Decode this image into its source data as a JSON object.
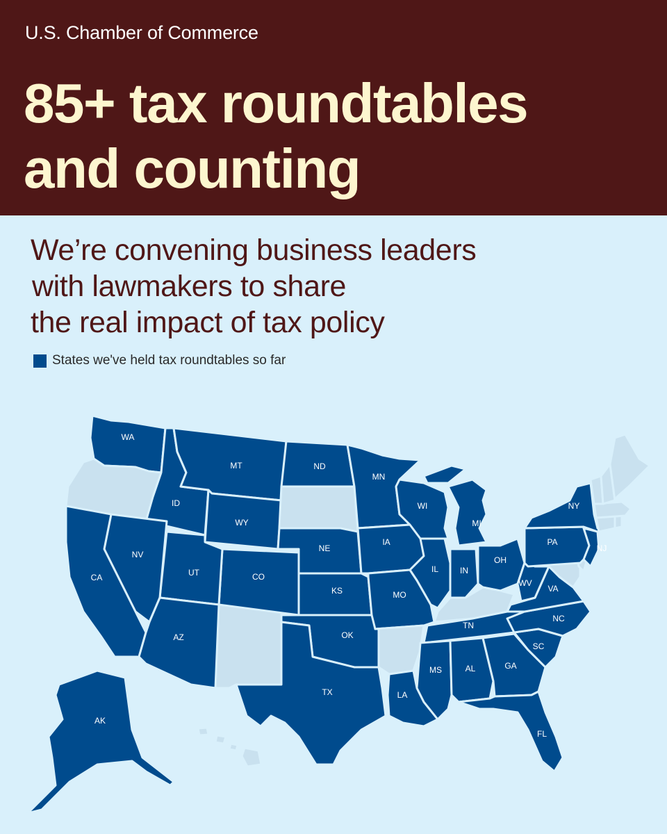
{
  "header": {
    "organization": "U.S. Chamber of Commerce",
    "headline_line1": "85+ tax roundtables",
    "headline_line2": "and counting"
  },
  "subheading": {
    "line1": "We’re convening business leaders",
    "line2": "with lawmakers to share",
    "line3": "the real impact of tax policy"
  },
  "legend": {
    "label": "States we've held tax roundtables so far",
    "color": "#004b8d"
  },
  "colors": {
    "header_background": "#4f1717",
    "headline_text": "#fdf6cf",
    "page_background": "#d9f0fb",
    "state_held": "#004b8d",
    "state_not_held": "#c9e1ef"
  },
  "map": {
    "held_states": [
      "WA",
      "MT",
      "ND",
      "MN",
      "ID",
      "WI",
      "MI",
      "NY",
      "WY",
      "NV",
      "CA",
      "UT",
      "CO",
      "NE",
      "IA",
      "IL",
      "IN",
      "OH",
      "PA",
      "NJ",
      "WV",
      "VA",
      "KS",
      "MO",
      "TN",
      "NC",
      "SC",
      "OK",
      "AZ",
      "TX",
      "LA",
      "MS",
      "AL",
      "GA",
      "FL",
      "AK"
    ],
    "not_held_states": [
      "OR",
      "SD",
      "NM",
      "AR",
      "KY",
      "ME",
      "VT",
      "NH",
      "MA",
      "CT",
      "RI",
      "DE",
      "MD",
      "HI"
    ],
    "labels": {
      "WA": "WA",
      "MT": "MT",
      "ND": "ND",
      "MN": "MN",
      "ID": "ID",
      "WI": "WI",
      "MI": "MI",
      "NY": "NY",
      "WY": "WY",
      "NV": "NV",
      "CA": "CA",
      "UT": "UT",
      "CO": "CO",
      "NE": "NE",
      "IA": "IA",
      "IL": "IL",
      "IN": "IN",
      "OH": "OH",
      "PA": "PA",
      "NJ": "NJ",
      "WV": "WV",
      "VA": "VA",
      "KS": "KS",
      "MO": "MO",
      "TN": "TN",
      "NC": "NC",
      "SC": "SC",
      "OK": "OK",
      "AZ": "AZ",
      "TX": "TX",
      "LA": "LA",
      "MS": "MS",
      "AL": "AL",
      "GA": "GA",
      "FL": "FL",
      "AK": "AK"
    }
  }
}
